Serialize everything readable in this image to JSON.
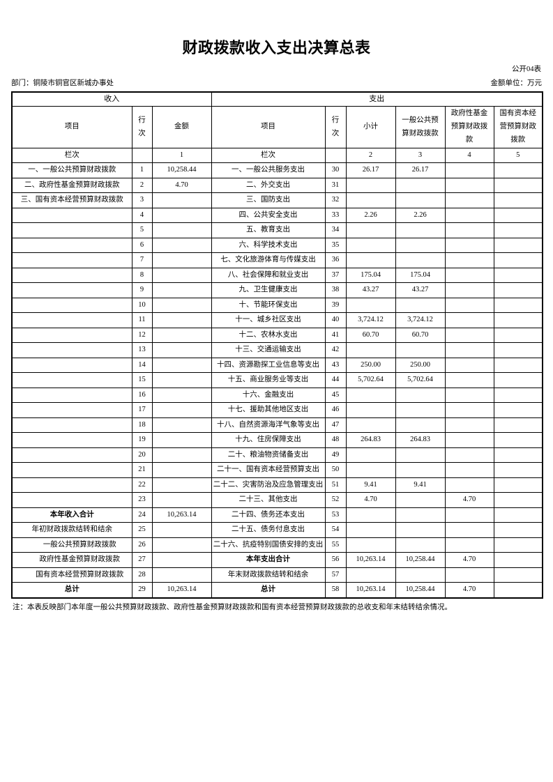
{
  "page": {
    "title": "财政拨款收入支出决算总表",
    "form_code": "公开04表",
    "department": "部门：铜陵市铜官区新城办事处",
    "unit": "金额单位：万元",
    "note": "注：本表反映部门本年度一般公共预算财政拨款、政府性基金预算财政拨款和国有资本经营预算财政拨款的总收支和年末结转结余情况。"
  },
  "table": {
    "sections": {
      "income": "收入",
      "expense": "支出"
    },
    "columns": {
      "income_item": "项目",
      "income_row_no": "行次",
      "income_amount": "金额",
      "expense_item": "项目",
      "expense_row_no": "行次",
      "subtotal": "小计",
      "general_budget": "一般公共预算财政拨款",
      "gov_fund": "政府性基金预算财政拨款",
      "state_capital": "国有资本经营预算财政拨款"
    },
    "colnum": {
      "income_label": "栏次",
      "income_amount_no": "1",
      "expense_label": "栏次",
      "subtotal_no": "2",
      "general_no": "3",
      "fund_no": "4",
      "capital_no": "5"
    },
    "rows": [
      {
        "income_item": "一、一般公共预算财政拨款",
        "income_no": "1",
        "income_amount": "10,258.44",
        "expense_item": "一、一般公共服务支出",
        "expense_no": "30",
        "subtotal": "26.17",
        "general": "26.17"
      },
      {
        "income_item": "二、政府性基金预算财政拨款",
        "income_no": "2",
        "income_amount": "4.70",
        "expense_item": "二、外交支出",
        "expense_no": "31"
      },
      {
        "income_item": "三、国有资本经营预算财政拨款",
        "income_no": "3",
        "expense_item": "三、国防支出",
        "expense_no": "32"
      },
      {
        "income_no": "4",
        "expense_item": "四、公共安全支出",
        "expense_no": "33",
        "subtotal": "2.26",
        "general": "2.26"
      },
      {
        "income_no": "5",
        "expense_item": "五、教育支出",
        "expense_no": "34"
      },
      {
        "income_no": "6",
        "expense_item": "六、科学技术支出",
        "expense_no": "35"
      },
      {
        "income_no": "7",
        "expense_item": "七、文化旅游体育与传媒支出",
        "expense_no": "36"
      },
      {
        "income_no": "8",
        "expense_item": "八、社会保障和就业支出",
        "expense_no": "37",
        "subtotal": "175.04",
        "general": "175.04"
      },
      {
        "income_no": "9",
        "expense_item": "九、卫生健康支出",
        "expense_no": "38",
        "subtotal": "43.27",
        "general": "43.27"
      },
      {
        "income_no": "10",
        "expense_item": "十、节能环保支出",
        "expense_no": "39"
      },
      {
        "income_no": "11",
        "expense_item": "十一、城乡社区支出",
        "expense_no": "40",
        "subtotal": "3,724.12",
        "general": "3,724.12"
      },
      {
        "income_no": "12",
        "expense_item": "十二、农林水支出",
        "expense_no": "41",
        "subtotal": "60.70",
        "general": "60.70"
      },
      {
        "income_no": "13",
        "expense_item": "十三、交通运输支出",
        "expense_no": "42"
      },
      {
        "income_no": "14",
        "expense_item": "十四、资源勘探工业信息等支出",
        "expense_no": "43",
        "subtotal": "250.00",
        "general": "250.00"
      },
      {
        "income_no": "15",
        "expense_item": "十五、商业服务业等支出",
        "expense_no": "44",
        "subtotal": "5,702.64",
        "general": "5,702.64"
      },
      {
        "income_no": "16",
        "expense_item": "十六、金融支出",
        "expense_no": "45"
      },
      {
        "income_no": "17",
        "expense_item": "十七、援助其他地区支出",
        "expense_no": "46"
      },
      {
        "income_no": "18",
        "expense_item": "十八、自然资源海洋气象等支出",
        "expense_no": "47"
      },
      {
        "income_no": "19",
        "expense_item": "十九、住房保障支出",
        "expense_no": "48",
        "subtotal": "264.83",
        "general": "264.83"
      },
      {
        "income_no": "20",
        "expense_item": "二十、粮油物资储备支出",
        "expense_no": "49"
      },
      {
        "income_no": "21",
        "expense_item": "二十一、国有资本经营预算支出",
        "expense_no": "50"
      },
      {
        "income_no": "22",
        "expense_item": "二十二、灾害防治及应急管理支出",
        "expense_no": "51",
        "subtotal": "9.41",
        "general": "9.41"
      },
      {
        "income_no": "23",
        "expense_item": "二十三、其他支出",
        "expense_no": "52",
        "subtotal": "4.70",
        "fund": "4.70"
      },
      {
        "income_item": "本年收入合计",
        "income_style": "total",
        "income_no": "24",
        "income_amount": "10,263.14",
        "expense_item": "二十四、债务还本支出",
        "expense_no": "53"
      },
      {
        "income_item": "年初财政拨款结转和结余",
        "income_no": "25",
        "expense_item": "二十五、债务付息支出",
        "expense_no": "54"
      },
      {
        "income_item": "一般公共预算财政拨款",
        "income_style": "indent",
        "income_no": "26",
        "expense_item": "二十六、抗疫特别国债安排的支出",
        "expense_no": "55"
      },
      {
        "income_item": "政府性基金预算财政拨款",
        "income_style": "indent",
        "income_no": "27",
        "expense_item": "本年支出合计",
        "expense_style": "total",
        "expense_no": "56",
        "subtotal": "10,263.14",
        "general": "10,258.44",
        "fund": "4.70"
      },
      {
        "income_item": "国有资本经营预算财政拨款",
        "income_style": "indent",
        "income_no": "28",
        "expense_item": "年末财政拨款结转和结余",
        "expense_no": "57"
      },
      {
        "income_item": "总计",
        "income_style": "total",
        "income_no": "29",
        "income_amount": "10,263.14",
        "expense_item": "总计",
        "expense_style": "total",
        "expense_no": "58",
        "subtotal": "10,263.14",
        "general": "10,258.44",
        "fund": "4.70"
      }
    ]
  }
}
